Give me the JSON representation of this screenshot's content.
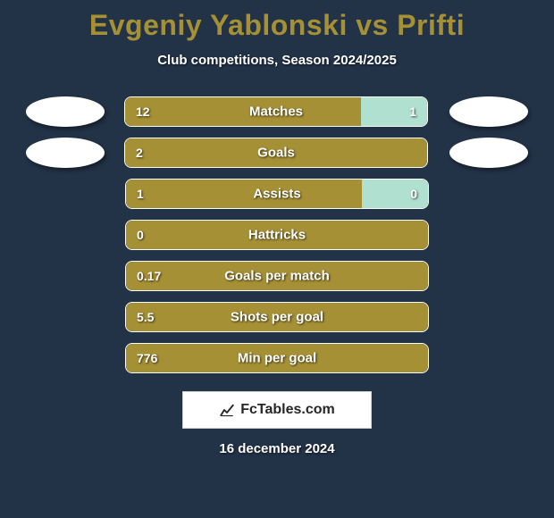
{
  "background_color": "#223247",
  "title": {
    "text": "Evgeniy Yablonski vs Prifti",
    "color": "#a59035",
    "fontsize": 32
  },
  "subtitle": "Club competitions, Season 2024/2025",
  "colors": {
    "player1_bar": "#a59035",
    "player2_bar": "#b0e0d0",
    "bar_border": "#ffffff",
    "text": "#ffffff"
  },
  "avatars_rows": [
    0,
    1
  ],
  "bars": [
    {
      "label": "Matches",
      "p1": "12",
      "p2": "1",
      "split": [
        0.78,
        0.22
      ]
    },
    {
      "label": "Goals",
      "p1": "2",
      "p2": "",
      "split": [
        1.0,
        0.0
      ]
    },
    {
      "label": "Assists",
      "p1": "1",
      "p2": "0",
      "split": [
        0.78,
        0.22
      ]
    },
    {
      "label": "Hattricks",
      "p1": "0",
      "p2": "",
      "split": [
        1.0,
        0.0
      ]
    },
    {
      "label": "Goals per match",
      "p1": "0.17",
      "p2": "",
      "split": [
        1.0,
        0.0
      ]
    },
    {
      "label": "Shots per goal",
      "p1": "5.5",
      "p2": "",
      "split": [
        1.0,
        0.0
      ]
    },
    {
      "label": "Min per goal",
      "p1": "776",
      "p2": "",
      "split": [
        1.0,
        0.0
      ]
    }
  ],
  "badge": {
    "text": "FcTables.com"
  },
  "footer": "16 december 2024"
}
